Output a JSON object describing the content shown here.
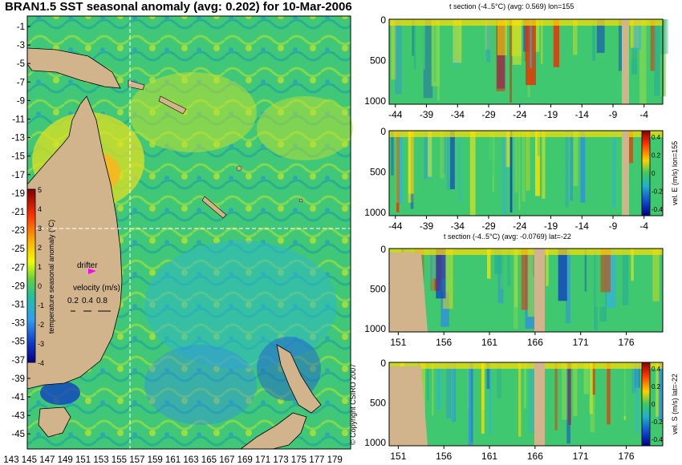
{
  "title": "BRAN1.5 SST seasonal anomaly (avg: 0.202) for 10-Mar-2006",
  "copyright": "© Copyright CSIRO 2007",
  "colors": {
    "land": "#d2b48c",
    "ocean_mid": "#3cc870",
    "warm": "#ffe000",
    "hot": "#e83000",
    "cool": "#30b0e0",
    "cold": "#1040c0",
    "drifter": "#ff00ff",
    "crosshair": "#ffffff"
  },
  "map": {
    "lon_ticks": [
      "143",
      "145",
      "147",
      "149",
      "151",
      "153",
      "155",
      "157",
      "159",
      "161",
      "163",
      "165",
      "167",
      "169",
      "171",
      "173",
      "175",
      "177",
      "179"
    ],
    "lat_ticks": [
      "-1",
      "-3",
      "-5",
      "-7",
      "-9",
      "-11",
      "-13",
      "-15",
      "-17",
      "-19",
      "-21",
      "-23",
      "-25",
      "-27",
      "-29",
      "-31",
      "-33",
      "-35",
      "-37",
      "-39",
      "-41",
      "-43",
      "-45"
    ],
    "crosshair_lon": 155,
    "crosshair_lat": -22,
    "colorbar": {
      "label": "temperature seasonal anomaly (°C)",
      "ticks": [
        "5",
        "4",
        "3",
        "2",
        "1",
        "0",
        "-1",
        "-2",
        "-3",
        "-4"
      ]
    },
    "drifter_label": "drifter",
    "velocity_label": "velocity (m/s)",
    "velocity_scale": [
      "0.2",
      "0.4",
      "0.8"
    ]
  },
  "chart_data": [
    {
      "type": "heatmap",
      "title": "t section (-4..5°C) (avg: 0.569) lon=155",
      "x_ticks": [
        "-44",
        "-39",
        "-34",
        "-29",
        "-24",
        "-19",
        "-14",
        "-9",
        "-4"
      ],
      "y_ticks": [
        "0",
        "500",
        "1000"
      ],
      "xlim": [
        -45,
        -1
      ],
      "ylim": [
        1050,
        0
      ]
    },
    {
      "type": "heatmap",
      "title": "",
      "x_ticks": [
        "-44",
        "-39",
        "-34",
        "-29",
        "-24",
        "-19",
        "-14",
        "-9",
        "-4"
      ],
      "y_ticks": [
        "0",
        "500",
        "1000"
      ],
      "colorbar_label": "vel. E (m/s) lon=155",
      "colorbar_ticks": [
        "0.4",
        "0.2",
        "0",
        "-0.2",
        "-0.4"
      ],
      "xlim": [
        -45,
        -1
      ],
      "ylim": [
        1050,
        0
      ]
    },
    {
      "type": "heatmap",
      "title": "t section (-4..5°C) (avg: -0.0769) lat=-22",
      "x_ticks": [
        "151",
        "156",
        "161",
        "166",
        "171",
        "176"
      ],
      "y_ticks": [
        "0",
        "500",
        "1000"
      ],
      "xlim": [
        150,
        180
      ],
      "ylim": [
        1050,
        0
      ]
    },
    {
      "type": "heatmap",
      "title": "",
      "x_ticks": [
        "151",
        "156",
        "161",
        "166",
        "171",
        "176"
      ],
      "y_ticks": [
        "0",
        "500",
        "1000"
      ],
      "colorbar_label": "vel. S (m/s) lat=-22",
      "colorbar_ticks": [
        "0.4",
        "0.2",
        "0",
        "-0.2",
        "-0.4"
      ],
      "xlim": [
        150,
        180
      ],
      "ylim": [
        1050,
        0
      ]
    }
  ]
}
